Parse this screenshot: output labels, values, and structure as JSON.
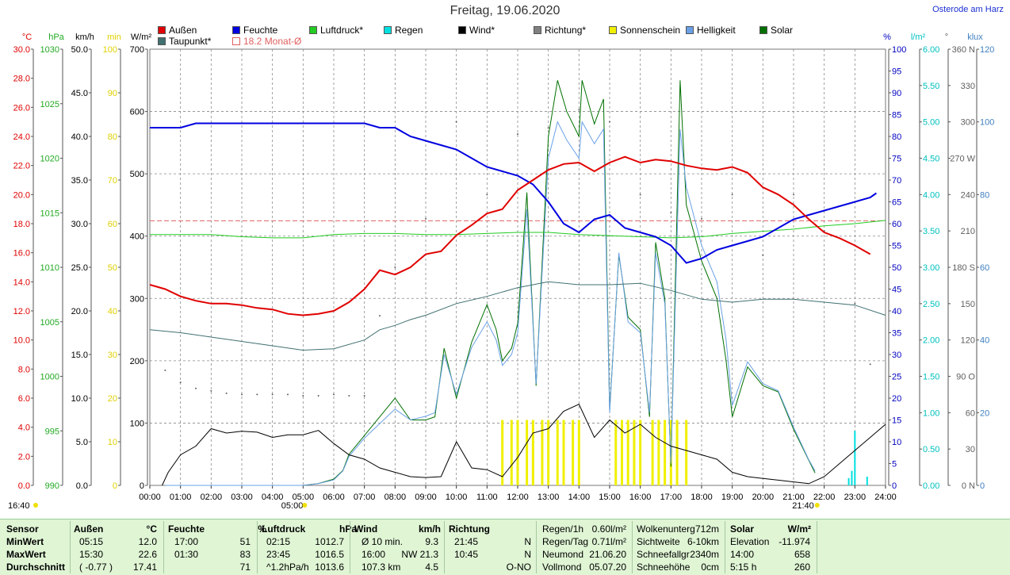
{
  "title": "Freitag, 19.06.2020",
  "location": "Osterode am Harz",
  "legend": [
    {
      "label": "Außen",
      "color": "#e00000",
      "row": 0,
      "col": 0
    },
    {
      "label": "Feuchte",
      "color": "#0000e0",
      "row": 0,
      "col": 1
    },
    {
      "label": "Luftdruck*",
      "color": "#22cc22",
      "row": 0,
      "col": 2
    },
    {
      "label": "Regen",
      "color": "#00e0e0",
      "row": 0,
      "col": 3
    },
    {
      "label": "Wind*",
      "color": "#000000",
      "row": 0,
      "col": 4
    },
    {
      "label": "Richtung*",
      "color": "#808080",
      "row": 0,
      "col": 5
    },
    {
      "label": "Sonnenschein",
      "color": "#f0f000",
      "row": 0,
      "col": 6
    },
    {
      "label": "Helligkeit",
      "color": "#6aa0e6",
      "row": 0,
      "col": 7
    },
    {
      "label": "Solar",
      "color": "#007000",
      "row": 0,
      "col": 8
    },
    {
      "label": "Taupunkt*",
      "color": "#407070",
      "row": 1,
      "col": 0
    },
    {
      "label": "18.2 Monat-Ø",
      "color": "#e06060",
      "row": 1,
      "col": 1,
      "outline": true
    }
  ],
  "chart_data": {
    "type": "line",
    "x_ticks": [
      "00:00",
      "01:00",
      "02:00",
      "03:00",
      "04:00",
      "05:00",
      "06:00",
      "07:00",
      "08:00",
      "09:00",
      "10:00",
      "11:00",
      "12:00",
      "13:00",
      "14:00",
      "15:00",
      "16:00",
      "17:00",
      "18:00",
      "19:00",
      "20:00",
      "21:00",
      "22:00",
      "23:00",
      "24:00"
    ],
    "left_axes": [
      {
        "unit": "°C",
        "color": "#e00000",
        "min": 0,
        "max": 30,
        "ticks": [
          "0.0",
          "2.0",
          "4.0",
          "6.0",
          "8.0",
          "10.0",
          "12.0",
          "14.0",
          "16.0",
          "18.0",
          "20.0",
          "22.0",
          "24.0",
          "26.0",
          "28.0",
          "30.0"
        ]
      },
      {
        "unit": "hPa",
        "color": "#22aa22",
        "min": 990,
        "max": 1030,
        "ticks": [
          "990",
          "995",
          "1000",
          "1005",
          "1010",
          "1015",
          "1020",
          "1025",
          "1030"
        ]
      },
      {
        "unit": "km/h",
        "color": "#000000",
        "min": 0,
        "max": 50,
        "ticks": [
          "0.0",
          "5.0",
          "10.0",
          "15.0",
          "20.0",
          "25.0",
          "30.0",
          "35.0",
          "40.0",
          "45.0",
          "50.0"
        ]
      },
      {
        "unit": "min",
        "color": "#e0d000",
        "min": 0,
        "max": 100,
        "ticks": [
          "0",
          "10",
          "20",
          "30",
          "40",
          "50",
          "60",
          "70",
          "80",
          "90",
          "100"
        ]
      },
      {
        "unit": "W/m²",
        "color": "#000000",
        "min": 0,
        "max": 700,
        "ticks": [
          "0",
          "100",
          "200",
          "300",
          "400",
          "500",
          "600",
          "700"
        ]
      }
    ],
    "right_axes": [
      {
        "unit": "%",
        "color": "#0000c0",
        "min": 0,
        "max": 100,
        "ticks": [
          "0",
          "5",
          "10",
          "15",
          "20",
          "25",
          "30",
          "35",
          "40",
          "45",
          "50",
          "55",
          "60",
          "65",
          "70",
          "75",
          "80",
          "85",
          "90",
          "95",
          "100"
        ]
      },
      {
        "unit": "l/m²",
        "color": "#00c0c0",
        "min": 0,
        "max": 6,
        "ticks": [
          "0.00",
          "0.50",
          "1.00",
          "1.50",
          "2.00",
          "2.50",
          "3.00",
          "3.50",
          "4.00",
          "4.50",
          "5.00",
          "5.50",
          "6.00"
        ]
      },
      {
        "unit": "°",
        "color": "#606060",
        "min": 0,
        "max": 360,
        "ticks": [
          "0 N",
          "30",
          "60",
          "90 O",
          "120",
          "150",
          "180 S",
          "210",
          "240",
          "270 W",
          "300",
          "330",
          "360 N"
        ]
      },
      {
        "unit": "klux",
        "color": "#4080c0",
        "min": 0,
        "max": 120,
        "ticks": [
          "0",
          "20",
          "40",
          "60",
          "80",
          "100",
          "120"
        ]
      }
    ],
    "sunrise_label": "05:00",
    "sunset_label": "21:40",
    "left_corner_label": "16:40",
    "monthly_avg_temp": 18.2,
    "series": [
      {
        "name": "Außen",
        "axis": "°C",
        "color": "#e00000",
        "x": [
          0,
          0.5,
          1,
          1.5,
          2,
          2.5,
          3,
          3.5,
          4,
          4.5,
          5,
          5.5,
          6,
          6.5,
          7,
          7.5,
          8,
          8.5,
          9,
          9.5,
          10,
          10.5,
          11,
          11.5,
          12,
          12.5,
          13,
          13.5,
          14,
          14.5,
          15,
          15.5,
          16,
          16.5,
          17,
          17.5,
          18,
          18.5,
          19,
          19.5,
          20,
          20.5,
          21,
          21.5,
          22,
          22.5,
          23,
          23.5
        ],
        "y": [
          13.8,
          13.5,
          13.0,
          12.7,
          12.5,
          12.5,
          12.4,
          12.2,
          12.1,
          11.8,
          11.7,
          11.8,
          12.0,
          12.6,
          13.5,
          14.8,
          14.5,
          15.0,
          15.9,
          16.1,
          17.2,
          17.9,
          18.7,
          19.0,
          20.3,
          21.0,
          21.7,
          22.1,
          22.2,
          21.6,
          22.2,
          22.6,
          22.2,
          22.4,
          22.3,
          22.0,
          21.8,
          21.7,
          21.9,
          21.5,
          20.5,
          20.0,
          19.3,
          18.3,
          17.4,
          17.0,
          16.5,
          15.9
        ]
      },
      {
        "name": "Feuchte",
        "axis": "%",
        "color": "#0000e0",
        "x": [
          0,
          0.5,
          1,
          1.5,
          2,
          3,
          4,
          5,
          6,
          7,
          7.5,
          8,
          8.5,
          9,
          9.5,
          10,
          10.5,
          11,
          11.5,
          12,
          12.5,
          13,
          13.5,
          14,
          14.5,
          15,
          15.5,
          16,
          16.5,
          17,
          17.5,
          18,
          18.5,
          19,
          19.5,
          20,
          20.5,
          21,
          21.5,
          22,
          22.5,
          23,
          23.5,
          23.7
        ],
        "y": [
          82,
          82,
          82,
          83,
          83,
          83,
          83,
          83,
          83,
          83,
          82,
          82,
          80,
          79,
          78,
          77,
          75,
          73,
          72,
          71,
          69,
          65,
          60,
          58,
          61,
          62,
          59,
          58,
          57,
          55,
          51,
          52,
          54,
          55,
          56,
          57,
          59,
          61,
          62,
          63,
          64,
          65,
          66,
          67
        ]
      },
      {
        "name": "Luftdruck*",
        "axis": "hPa",
        "color": "#22cc22",
        "x": [
          0,
          1,
          2,
          3,
          4,
          5,
          6,
          7,
          8,
          9,
          10,
          11,
          12,
          13,
          14,
          15,
          16,
          17,
          18,
          19,
          20,
          21,
          22,
          23,
          24
        ],
        "y": [
          1013.0,
          1013.0,
          1013.0,
          1012.8,
          1012.7,
          1012.7,
          1013.0,
          1013.1,
          1013.1,
          1013.0,
          1013.0,
          1013.1,
          1013.2,
          1013.2,
          1013.0,
          1012.9,
          1012.8,
          1012.7,
          1012.8,
          1013.1,
          1013.3,
          1013.5,
          1013.8,
          1014.0,
          1014.3
        ]
      },
      {
        "name": "Taupunkt*",
        "axis": "°C",
        "color": "#407070",
        "x": [
          0,
          1,
          2,
          3,
          4,
          5,
          6,
          7,
          7.5,
          8,
          8.5,
          9,
          10,
          11,
          12,
          13,
          14,
          15,
          16,
          17,
          18,
          19,
          20,
          21,
          22,
          23,
          24
        ],
        "y": [
          10.7,
          10.5,
          10.2,
          9.9,
          9.6,
          9.3,
          9.4,
          10.0,
          10.7,
          11.0,
          11.4,
          11.7,
          12.5,
          13.0,
          13.6,
          14.0,
          13.8,
          13.8,
          13.9,
          13.4,
          12.8,
          12.6,
          12.8,
          12.8,
          12.6,
          12.4,
          11.7
        ]
      },
      {
        "name": "Wind*",
        "axis": "km/h",
        "color": "#000000",
        "x": [
          0.4,
          0.6,
          1,
          1.5,
          2,
          2.5,
          3,
          3.5,
          4,
          4.5,
          5,
          5.5,
          6,
          6.5,
          7,
          7.5,
          8,
          8.5,
          9,
          9.5,
          10,
          10.5,
          11,
          11.5,
          12,
          12.5,
          13,
          13.5,
          14,
          14.5,
          15,
          15.5,
          16,
          16.5,
          17,
          17.5,
          18,
          18.5,
          19,
          19.5,
          20,
          20.5,
          21,
          21.5,
          22,
          22.5,
          23,
          23.5,
          24
        ],
        "y": [
          0,
          1.5,
          3.5,
          4.5,
          6.5,
          6,
          6.2,
          6.1,
          5.5,
          5.8,
          5.8,
          6.3,
          4.8,
          3.5,
          3.0,
          2.0,
          1.5,
          1.0,
          0.9,
          1.0,
          5.0,
          2.0,
          1.8,
          1.0,
          3.2,
          6.0,
          6.5,
          8.5,
          9.3,
          5.5,
          7.5,
          6.0,
          7.0,
          5.5,
          4.5,
          4.0,
          3.5,
          3.0,
          1.5,
          1.0,
          0.8,
          0.6,
          0.4,
          0.2,
          1.0,
          2.5,
          4.0,
          5.5,
          7.0
        ]
      },
      {
        "name": "Solar",
        "axis": "W/m²",
        "color": "#007000",
        "x": [
          0.5,
          1,
          2,
          3,
          4,
          5,
          5.5,
          6,
          6.3,
          6.5,
          7,
          7.5,
          8,
          8.5,
          9,
          9.3,
          9.6,
          10,
          10.5,
          11,
          11.3,
          11.5,
          11.8,
          12,
          12.3,
          12.6,
          13,
          13.3,
          13.6,
          14,
          14.1,
          14.5,
          14.8,
          15,
          15.3,
          15.6,
          16,
          16.3,
          16.5,
          16.8,
          17,
          17.3,
          17.5,
          18,
          18.5,
          18.8,
          19,
          19.5,
          20,
          20.5,
          21,
          21.5,
          21.7
        ],
        "y": [
          0,
          0,
          0,
          0,
          0,
          0,
          3,
          10,
          24,
          50,
          80,
          110,
          140,
          105,
          105,
          110,
          220,
          140,
          230,
          290,
          250,
          200,
          220,
          260,
          470,
          160,
          560,
          650,
          600,
          560,
          650,
          580,
          620,
          120,
          370,
          270,
          250,
          110,
          390,
          300,
          30,
          650,
          450,
          360,
          300,
          200,
          110,
          190,
          160,
          150,
          90,
          40,
          20
        ]
      },
      {
        "name": "Helligkeit",
        "axis": "klux",
        "color": "#6aa0e6",
        "x": [
          0.5,
          1,
          2,
          3,
          4,
          5,
          5.5,
          6,
          6.3,
          6.5,
          7,
          7.5,
          8,
          8.5,
          9,
          9.3,
          9.6,
          10,
          10.5,
          11,
          11.3,
          11.5,
          11.8,
          12,
          12.3,
          12.6,
          13,
          13.3,
          13.6,
          14,
          14.1,
          14.5,
          14.8,
          15,
          15.3,
          15.6,
          16,
          16.3,
          16.5,
          16.8,
          17,
          17.3,
          17.5,
          18,
          18.5,
          18.8,
          19,
          19.5,
          20,
          20.5,
          21,
          21.5,
          21.7
        ],
        "y": [
          0,
          0,
          0,
          0,
          0,
          0,
          0.5,
          1.5,
          4,
          8,
          13,
          17,
          21,
          18,
          19,
          20,
          36,
          25,
          38,
          45,
          40,
          33,
          36,
          42,
          76,
          28,
          90,
          100,
          95,
          90,
          100,
          94,
          98,
          20,
          64,
          45,
          42,
          20,
          64,
          50,
          6,
          98,
          82,
          66,
          56,
          40,
          22,
          34,
          28,
          26,
          16,
          7,
          4
        ]
      }
    ],
    "regen_bars": {
      "axis": "l/m²",
      "x": [
        22.8,
        22.9,
        23.0,
        23.4
      ],
      "y": [
        0.1,
        0.2,
        0.75,
        0.12
      ]
    },
    "sunshine_bars": {
      "axis": "min",
      "x": [
        11.5,
        11.8,
        12.0,
        12.3,
        12.5,
        12.8,
        13.0,
        13.3,
        13.5,
        13.8,
        14.0,
        15.2,
        15.4,
        15.6,
        15.8,
        16.0,
        16.4,
        16.6,
        16.8,
        17.0,
        17.2,
        17.5
      ],
      "y": [
        15,
        15,
        15,
        15,
        15,
        15,
        15,
        15,
        15,
        15,
        15,
        15,
        15,
        15,
        15,
        15,
        15,
        15,
        15,
        15,
        15,
        15
      ]
    },
    "direction_points": {
      "axis": "°",
      "x": [
        0.5,
        1,
        1.5,
        2,
        2.5,
        3,
        3.5,
        4,
        4.5,
        5,
        5.5,
        6,
        6.5,
        7,
        7.5,
        8,
        9,
        10,
        11,
        12,
        13,
        14,
        15,
        16,
        17,
        18,
        19,
        20,
        21,
        22,
        23,
        23.5
      ],
      "y": [
        95,
        85,
        80,
        78,
        76,
        75,
        75,
        75,
        75,
        74,
        74,
        75,
        74,
        74,
        140,
        180,
        220,
        300,
        240,
        290,
        295,
        310,
        300,
        240,
        225,
        220,
        240,
        190,
        240,
        210,
        150,
        100
      ]
    }
  },
  "stats": {
    "headers": [
      {
        "label": "Sensor",
        "unit": ""
      },
      {
        "label": "Außen",
        "unit": "°C"
      },
      {
        "label": "Feuchte",
        "unit": "%"
      },
      {
        "label": "Luftdruck",
        "unit": "hPa"
      },
      {
        "label": "Wind",
        "unit": "km/h"
      },
      {
        "label": "Richtung",
        "unit": ""
      }
    ],
    "rows": [
      {
        "label": "MinWert",
        "aussen_t": "05:15",
        "aussen_v": "12.0",
        "feuchte_t": "17:00",
        "feuchte_v": "51",
        "luft_t": "02:15",
        "luft_v": "1012.7",
        "wind_t": "Ø 10 min.",
        "wind_v": "9.3",
        "richt_t": "21:45",
        "richt_v": "N"
      },
      {
        "label": "MaxWert",
        "aussen_t": "15:30",
        "aussen_v": "22.6",
        "feuchte_t": "01:30",
        "feuchte_v": "83",
        "luft_t": "23:45",
        "luft_v": "1016.5",
        "wind_t": "16:00",
        "wind_v": "NW 21.3",
        "richt_t": "10:45",
        "richt_v": "N"
      },
      {
        "label": "Durchschnitt",
        "aussen_t": "( -0.77 )",
        "aussen_v": "17.41",
        "feuchte_t": "",
        "feuchte_v": "71",
        "luft_t": "^1.2hPa/h",
        "luft_v": "1013.6",
        "wind_t": "107.3 km",
        "wind_v": "4.5",
        "richt_t": "",
        "richt_v": "O-NO"
      }
    ],
    "extra": [
      [
        [
          "Regen/1h",
          "0.60l/m²"
        ],
        [
          "Wolkenunterg",
          "712m"
        ]
      ],
      [
        [
          "Regen/Tag",
          "0.71l/m²"
        ],
        [
          "Sichtweite",
          "6-10km"
        ]
      ],
      [
        [
          "Neumond",
          "21.06.20"
        ],
        [
          "Schneefallgr",
          "2340m"
        ]
      ],
      [
        [
          "Vollmond",
          "05.07.20"
        ],
        [
          "Schneehöhe",
          "0cm"
        ]
      ]
    ],
    "solar": {
      "header": "Solar",
      "unit": "W/m²",
      "rows": [
        [
          "Elevation",
          "-11.974"
        ],
        [
          "14:00",
          "658"
        ],
        [
          "5:15 h",
          "260"
        ]
      ]
    }
  }
}
